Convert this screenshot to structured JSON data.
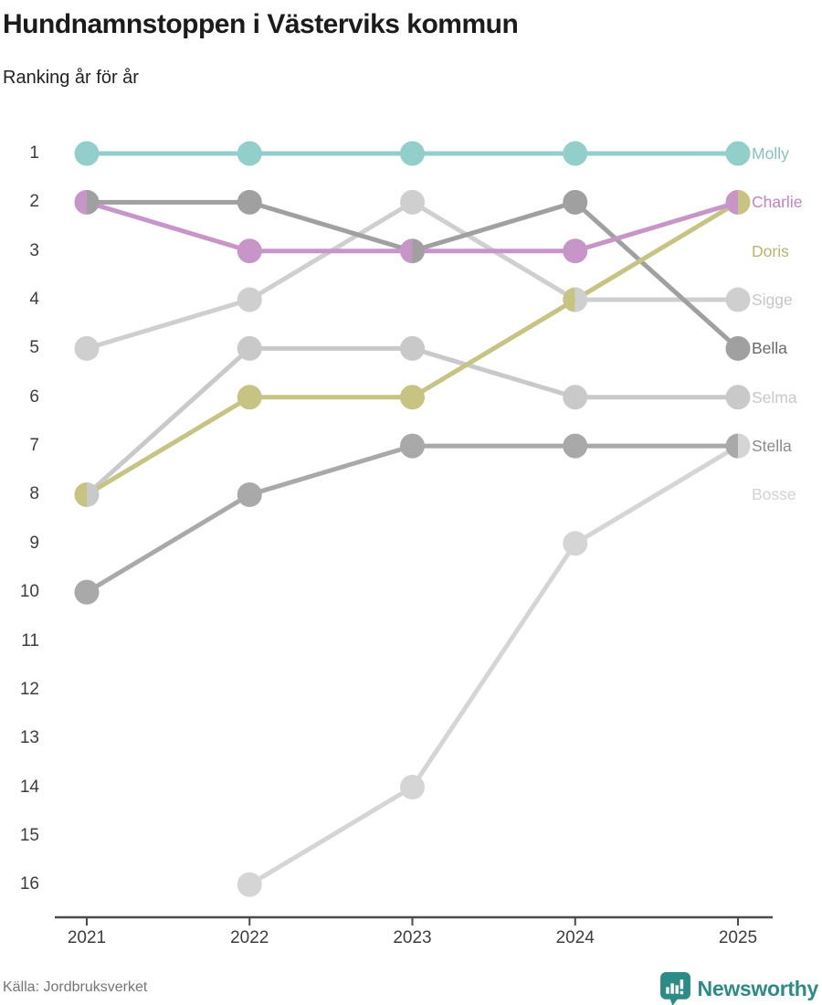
{
  "header": {
    "title": "Hundnamnstoppen i Västerviks kommun",
    "subtitle": "Ranking år för år"
  },
  "footer": {
    "source": "Källa: Jordbruksverket",
    "brand": "Newsworthy",
    "brand_color": "#2d8b85"
  },
  "axis": {
    "line_color": "#4a4a4a",
    "tick_color": "#4a4a4a",
    "y_ticks": [
      "1",
      "2",
      "3",
      "4",
      "5",
      "6",
      "7",
      "8",
      "9",
      "10",
      "11",
      "12",
      "13",
      "14",
      "15",
      "16"
    ],
    "x_ticks": [
      "2021",
      "2022",
      "2023",
      "2024",
      "2025"
    ]
  },
  "chart_data": {
    "type": "line",
    "variant": "bump-ranking",
    "title": "Hundnamnstoppen i Västerviks kommun",
    "subtitle": "Ranking år för år",
    "x": [
      2021,
      2022,
      2023,
      2024,
      2025
    ],
    "xlabel": "",
    "ylabel": "",
    "ylim": [
      1,
      16
    ],
    "y_axis_inverted": true,
    "grid": false,
    "legend_position": "right-of-last-point",
    "series": [
      {
        "name": "Bosse",
        "values": [
          null,
          16,
          14,
          9,
          7
        ],
        "color": "#d5d5d5",
        "label_color": "#d2d2d2",
        "label_row": 8
      },
      {
        "name": "Selma",
        "values": [
          8,
          5,
          5,
          6,
          6
        ],
        "color": "#c9c9c9",
        "label_color": "#c8c8c8",
        "label_row": 6
      },
      {
        "name": "Sigge",
        "values": [
          5,
          4,
          2,
          4,
          4
        ],
        "color": "#cfcfcf",
        "label_color": "#c6c6c6",
        "label_row": 4
      },
      {
        "name": "Stella",
        "values": [
          10,
          8,
          7,
          7,
          7
        ],
        "color": "#a9a9a9",
        "label_color": "#8a8a8a",
        "label_row": 7
      },
      {
        "name": "Bella",
        "values": [
          2,
          2,
          3,
          2,
          5
        ],
        "color": "#a0a0a0",
        "label_color": "#696969",
        "label_row": 5
      },
      {
        "name": "Doris",
        "values": [
          8,
          6,
          6,
          4,
          2
        ],
        "color": "#c6c383",
        "label_color": "#b9b56a",
        "label_row": 3
      },
      {
        "name": "Charlie",
        "values": [
          2,
          3,
          3,
          3,
          2
        ],
        "color": "#c795c7",
        "label_color": "#c083c0",
        "label_row": 2
      },
      {
        "name": "Molly",
        "values": [
          1,
          1,
          1,
          1,
          1
        ],
        "color": "#93cfca",
        "label_color": "#85c3be",
        "label_row": 1
      }
    ]
  }
}
